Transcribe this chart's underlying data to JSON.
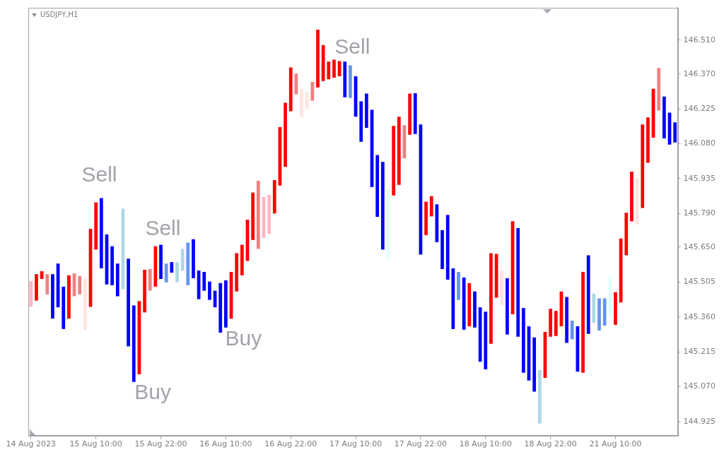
{
  "chart_data": {
    "type": "bar",
    "title": "USDJPY,H1",
    "categories": [
      "14 Aug 2023",
      null,
      null,
      null,
      null,
      null,
      null,
      null,
      null,
      null,
      null,
      null,
      "15 Aug 10:00",
      null,
      null,
      null,
      null,
      null,
      null,
      null,
      null,
      null,
      null,
      null,
      "15 Aug 22:00",
      null,
      null,
      null,
      null,
      null,
      null,
      null,
      null,
      null,
      null,
      null,
      "16 Aug 10:00",
      null,
      null,
      null,
      null,
      null,
      null,
      null,
      null,
      null,
      null,
      null,
      "16 Aug 22:00",
      null,
      null,
      null,
      null,
      null,
      null,
      null,
      null,
      null,
      null,
      null,
      "17 Aug 10:00",
      null,
      null,
      null,
      null,
      null,
      null,
      null,
      null,
      null,
      null,
      null,
      "17 Aug 22:00",
      null,
      null,
      null,
      null,
      null,
      null,
      null,
      null,
      null,
      null,
      null,
      "18 Aug 10:00",
      null,
      null,
      null,
      null,
      null,
      null,
      null,
      null,
      null,
      null,
      null,
      "18 Aug 22:00",
      null,
      null,
      null,
      null,
      null,
      null,
      null,
      null,
      null,
      null,
      null,
      "21 Aug 10:00",
      null,
      null,
      null,
      null,
      null,
      null,
      null,
      null,
      null,
      null,
      null
    ],
    "base": [
      145.402,
      145.428,
      145.518,
      145.454,
      145.353,
      145.4,
      145.31,
      145.353,
      145.446,
      145.454,
      145.307,
      145.402,
      145.64,
      145.562,
      145.495,
      145.492,
      145.446,
      145.475,
      145.238,
      145.09,
      145.122,
      145.379,
      145.469,
      145.486,
      145.518,
      145.504,
      145.544,
      145.504,
      145.553,
      145.492,
      145.521,
      145.434,
      145.469,
      145.431,
      145.4,
      145.295,
      145.316,
      145.353,
      145.466,
      145.533,
      145.593,
      145.68,
      145.643,
      145.689,
      145.706,
      145.79,
      145.906,
      145.984,
      146.215,
      146.285,
      146.189,
      146.224,
      146.259,
      146.314,
      146.34,
      146.348,
      146.354,
      146.36,
      146.273,
      146.27,
      146.192,
      146.088,
      146.146,
      145.9,
      145.776,
      145.64,
      145.605,
      145.865,
      145.909,
      146.019,
      146.117,
      146.12,
      145.619,
      145.7,
      145.778,
      145.671,
      145.559,
      145.515,
      145.31,
      145.431,
      145.307,
      145.321,
      145.316,
      145.174,
      145.142,
      145.249,
      145.44,
      145.408,
      145.287,
      145.371,
      145.278,
      145.128,
      145.096,
      145.05,
      144.917,
      145.107,
      145.278,
      145.281,
      145.321,
      145.252,
      145.267,
      145.133,
      145.128,
      145.29,
      145.336,
      145.304,
      145.324,
      145.371,
      145.327,
      145.42,
      145.616,
      145.758,
      145.744,
      145.813,
      146.001,
      146.105,
      146.218,
      146.102,
      146.076,
      146.085
    ],
    "values": [
      0.107,
      0.11,
      0.032,
      0.084,
      0.185,
      0.182,
      0.176,
      0.18,
      0.095,
      0.076,
      0.211,
      0.324,
      0.196,
      0.292,
      0.208,
      0.162,
      0.136,
      0.335,
      0.364,
      0.318,
      0.304,
      0.177,
      0.09,
      0.168,
      0.142,
      0.078,
      0.044,
      0.084,
      0.09,
      0.177,
      0.162,
      0.119,
      0.078,
      0.076,
      0.069,
      0.206,
      0.196,
      0.194,
      0.159,
      0.127,
      0.171,
      0.197,
      0.283,
      0.17,
      0.162,
      0.139,
      0.243,
      0.266,
      0.182,
      0.086,
      0.119,
      0.069,
      0.078,
      0.24,
      0.15,
      0.073,
      0.075,
      0.063,
      0.148,
      0.136,
      0.168,
      0.168,
      0.142,
      0.321,
      0.257,
      0.364,
      0.283,
      0.289,
      0.283,
      0.138,
      0.171,
      0.17,
      0.541,
      0.139,
      0.084,
      0.157,
      0.162,
      0.269,
      0.252,
      0.116,
      0.217,
      0.18,
      0.15,
      0.226,
      0.24,
      0.376,
      0.182,
      0.145,
      0.234,
      0.387,
      0.451,
      0.269,
      0.225,
      0.225,
      0.222,
      0.191,
      0.116,
      0.104,
      0.145,
      0.191,
      0.078,
      0.188,
      0.419,
      0.326,
      0.121,
      0.133,
      0.113,
      0.159,
      0.136,
      0.266,
      0.177,
      0.206,
      0.191,
      0.347,
      0.188,
      0.203,
      0.177,
      0.174,
      0.133,
      0.084
    ],
    "colors": [
      "#ffb6c1",
      "#ff0000",
      "#ff0000",
      "#f08080",
      "#0000ff",
      "#0000ff",
      "#0000ff",
      "#ff0000",
      "#f08080",
      "#f08080",
      "#ffe4e1",
      "#ff0000",
      "#ff0000",
      "#0000ff",
      "#0000ff",
      "#0000ff",
      "#0000ff",
      "#add8e6",
      "#0000ff",
      "#0000ff",
      "#ff0000",
      "#ff0000",
      "#f08080",
      "#ff0000",
      "#0000ff",
      "#6495ed",
      "#0000ff",
      "#add8e6",
      "#add8e6",
      "#6495ed",
      "#0000ff",
      "#0000ff",
      "#0000ff",
      "#0000ff",
      "#0000ff",
      "#0000ff",
      "#0000ff",
      "#ff0000",
      "#ff0000",
      "#ff0000",
      "#ff0000",
      "#ff0000",
      "#f08080",
      "#ffb6c1",
      "#ffb6c1",
      "#ff0000",
      "#ff0000",
      "#ff0000",
      "#ff0000",
      "#f08080",
      "#ffe4e1",
      "#ffe4e1",
      "#f08080",
      "#ff0000",
      "#ff0000",
      "#ff0000",
      "#ff0000",
      "#ff0000",
      "#0000ff",
      "#6495ed",
      "#0000ff",
      "#0000ff",
      "#0000ff",
      "#0000ff",
      "#0000ff",
      "#0000ff",
      "#e0ffff",
      "#ff0000",
      "#ff0000",
      "#f08080",
      "#ff0000",
      "#0000ff",
      "#0000ff",
      "#ff0000",
      "#ff0000",
      "#0000ff",
      "#0000ff",
      "#0000ff",
      "#0000ff",
      "#6495ed",
      "#0000ff",
      "#ff0000",
      "#0000ff",
      "#0000ff",
      "#0000ff",
      "#ff0000",
      "#ff0000",
      "#ffe4e1",
      "#0000ff",
      "#ff0000",
      "#0000ff",
      "#0000ff",
      "#0000ff",
      "#0000ff",
      "#add8e6",
      "#ff0000",
      "#ff0000",
      "#ff0000",
      "#ff0000",
      "#0000ff",
      "#6495ed",
      "#0000ff",
      "#ff0000",
      "#0000ff",
      "#add8e6",
      "#6495ed",
      "#6495ed",
      "#e0ffff",
      "#ff0000",
      "#ff0000",
      "#ff0000",
      "#ff0000",
      "#ffe4e1",
      "#ff0000",
      "#ff0000",
      "#ff0000",
      "#f08080",
      "#0000ff",
      "#0000ff",
      "#0000ff"
    ],
    "ylim": [
      144.867,
      146.646
    ],
    "yticks": [
      144.925,
      {
        "value": 145.07,
        "label": "145.070"
      },
      145.215,
      {
        "value": 145.36,
        "label": "145.360"
      },
      145.505,
      {
        "value": 145.65,
        "label": "145.650"
      },
      {
        "value": 145.79,
        "label": "145.790"
      },
      145.935,
      {
        "value": 146.08,
        "label": "146.080"
      },
      146.225,
      {
        "value": 146.37,
        "label": "146.370"
      },
      {
        "value": 146.51,
        "label": "146.510"
      }
    ],
    "annotations": [
      "Sell",
      "Buy",
      "Sell",
      "Buy",
      "Sell"
    ]
  }
}
